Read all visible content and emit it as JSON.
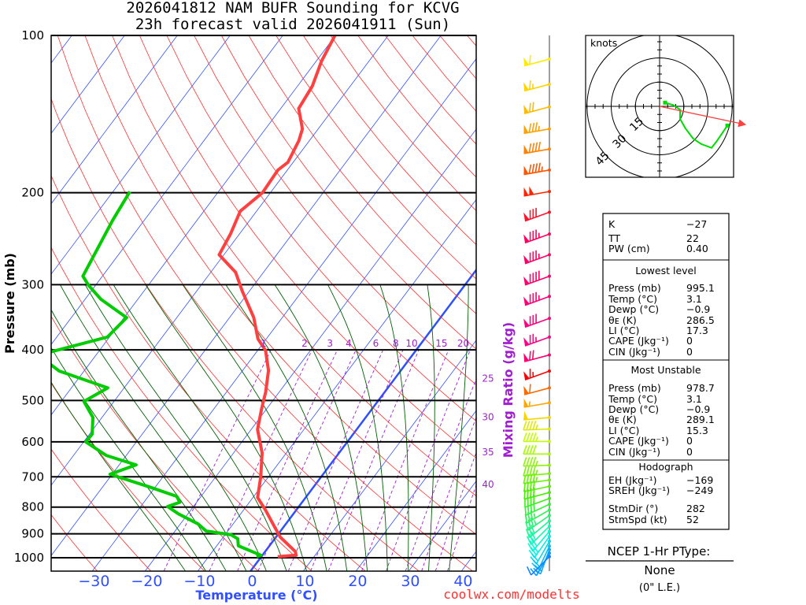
{
  "title": {
    "line1": "2026041812 NAM BUFR Sounding for KCVG",
    "line2": "23h forecast valid 2026041911 (Sun)"
  },
  "credit": "coolwx.com/modelts",
  "chart_data": {
    "type": "skew-t",
    "title": "2026041812 NAM BUFR Sounding for KCVG — 23h forecast valid 2026041911 (Sun)",
    "xlabel": "Temperature (°C)",
    "ylabel": "Pressure (mb)",
    "y2label": "Mixing Ratio (g/kg)",
    "ylim": [
      1060,
      100
    ],
    "pressure_ticks": [
      100,
      200,
      300,
      400,
      500,
      600,
      700,
      800,
      900,
      1000
    ],
    "pressure_tick_labels": [
      "100",
      "200",
      "300",
      "400",
      "500",
      "600",
      "700",
      "800",
      "900",
      "1000"
    ],
    "temperature_ticks": [
      -30,
      -20,
      -10,
      0,
      10,
      20,
      30,
      40
    ],
    "temperature_tick_labels": [
      "−30",
      "−20",
      "−10",
      "0",
      "10",
      "20",
      "30",
      "40"
    ],
    "mixing_ratio_values": [
      1,
      2,
      3,
      4,
      6,
      8,
      10,
      15,
      20,
      25,
      30,
      35,
      40
    ],
    "mixing_ratio_labels": [
      "1",
      "2",
      "3",
      "4",
      "6",
      "8",
      "10",
      "15",
      "20",
      "25",
      "30",
      "35",
      "40"
    ],
    "temperature": {
      "name": "Temperature",
      "color": "#ff4040",
      "points": [
        [
          100,
          -60.1
        ],
        [
          112,
          -59.0
        ],
        [
          125,
          -57.2
        ],
        [
          138,
          -56.6
        ],
        [
          151,
          -53.0
        ],
        [
          159,
          -52.0
        ],
        [
          175,
          -51.0
        ],
        [
          181,
          -51.8
        ],
        [
          200,
          -51.5
        ],
        [
          217,
          -53.1
        ],
        [
          240,
          -51.7
        ],
        [
          263,
          -50.9
        ],
        [
          284,
          -45.3
        ],
        [
          309,
          -41.3
        ],
        [
          347,
          -35.4
        ],
        [
          381,
          -31.6
        ],
        [
          401,
          -28.5
        ],
        [
          438,
          -25.1
        ],
        [
          481,
          -22.6
        ],
        [
          520,
          -20.9
        ],
        [
          568,
          -18.8
        ],
        [
          630,
          -14.6
        ],
        [
          699,
          -11.5
        ],
        [
          767,
          -9.1
        ],
        [
          811,
          -5.8
        ],
        [
          867,
          -2.1
        ],
        [
          913,
          0.8
        ],
        [
          973,
          5.7
        ],
        [
          989,
          6.4
        ],
        [
          995.1,
          3.1
        ]
      ]
    },
    "dewpoint": {
      "name": "Dewpoint",
      "color": "#00cc00",
      "points": [
        [
          199,
          -76.8
        ],
        [
          226,
          -76.0
        ],
        [
          289,
          -73.7
        ],
        [
          301,
          -71.3
        ],
        [
          320,
          -67.0
        ],
        [
          347,
          -59.5
        ],
        [
          378,
          -60.4
        ],
        [
          404,
          -69.2
        ],
        [
          415,
          -71.8
        ],
        [
          426,
          -67.4
        ],
        [
          439,
          -64.7
        ],
        [
          473,
          -53.1
        ],
        [
          502,
          -55.7
        ],
        [
          539,
          -51.7
        ],
        [
          580,
          -49.5
        ],
        [
          600,
          -49.6
        ],
        [
          637,
          -43.8
        ],
        [
          664,
          -36.8
        ],
        [
          692,
          -40.4
        ],
        [
          732,
          -31.1
        ],
        [
          763,
          -24.6
        ],
        [
          783,
          -23.2
        ],
        [
          798,
          -24.9
        ],
        [
          824,
          -21.8
        ],
        [
          862,
          -16.6
        ],
        [
          889,
          -14.1
        ],
        [
          904,
          -8.8
        ],
        [
          920,
          -7.0
        ],
        [
          949,
          -5.9
        ],
        [
          989,
          -0.3
        ],
        [
          995.1,
          -0.9
        ]
      ]
    },
    "wind_barbs": [
      [
        111,
        255,
        60
      ],
      [
        124,
        255,
        65
      ],
      [
        137,
        255,
        70
      ],
      [
        151,
        260,
        85
      ],
      [
        165,
        260,
        90
      ],
      [
        181,
        260,
        95
      ],
      [
        199,
        260,
        100
      ],
      [
        218,
        250,
        80
      ],
      [
        240,
        250,
        85
      ],
      [
        263,
        250,
        85
      ],
      [
        289,
        250,
        90
      ],
      [
        316,
        250,
        85
      ],
      [
        348,
        250,
        80
      ],
      [
        378,
        250,
        75
      ],
      [
        409,
        255,
        70
      ],
      [
        439,
        250,
        65
      ],
      [
        473,
        255,
        60
      ],
      [
        505,
        260,
        55
      ],
      [
        539,
        265,
        50
      ],
      [
        567,
        268,
        45
      ],
      [
        599,
        270,
        45
      ],
      [
        633,
        270,
        40
      ],
      [
        665,
        268,
        45
      ],
      [
        690,
        265,
        45
      ],
      [
        710,
        262,
        45
      ],
      [
        730,
        258,
        42
      ],
      [
        750,
        255,
        40
      ],
      [
        770,
        250,
        40
      ],
      [
        790,
        245,
        38
      ],
      [
        810,
        240,
        35
      ],
      [
        830,
        235,
        35
      ],
      [
        850,
        230,
        32
      ],
      [
        870,
        225,
        30
      ],
      [
        890,
        220,
        28
      ],
      [
        910,
        215,
        25
      ],
      [
        930,
        210,
        22
      ],
      [
        950,
        205,
        20
      ],
      [
        965,
        200,
        18
      ],
      [
        980,
        210,
        15
      ],
      [
        995,
        225,
        12
      ]
    ],
    "wind_units": "knots",
    "barb_palette": [
      [
        100,
        "#ffff00"
      ],
      [
        160,
        "#ff9000"
      ],
      [
        200,
        "#ff2000"
      ],
      [
        240,
        "#ff0060"
      ],
      [
        400,
        "#ff0090"
      ],
      [
        440,
        "#ff0000"
      ],
      [
        480,
        "#ff8000"
      ],
      [
        530,
        "#ffd000"
      ],
      [
        600,
        "#c0ff00"
      ],
      [
        760,
        "#40ee00"
      ],
      [
        900,
        "#00ffe0"
      ],
      [
        1000,
        "#1080ff"
      ]
    ],
    "hodograph": {
      "units_label": "knots",
      "ring_values": [
        15,
        30,
        45
      ],
      "ring_labels": [
        "15",
        "30",
        "45"
      ],
      "points_uv": [
        [
          3.4,
          2.3
        ],
        [
          8.6,
          0.8
        ],
        [
          12.7,
          -2.1
        ],
        [
          12.7,
          -7.8
        ],
        [
          15.9,
          -13.5
        ],
        [
          20.8,
          -20.0
        ],
        [
          25.7,
          -23.3
        ],
        [
          32.2,
          -25.7
        ],
        [
          35.4,
          -21.6
        ],
        [
          42.0,
          -11.9
        ]
      ],
      "storm_motion": {
        "dir": 282,
        "spd": 52
      }
    }
  },
  "indices": {
    "top": [
      {
        "label": "K",
        "value": "−27"
      },
      {
        "label": "TT",
        "value": "22"
      },
      {
        "label": "PW (cm)",
        "value": "0.40"
      }
    ],
    "lowest_title": "Lowest level",
    "lowest": [
      {
        "label": "Press (mb)",
        "value": "995.1"
      },
      {
        "label": "Temp (°C)",
        "value": "3.1"
      },
      {
        "label": "Dewp (°C)",
        "value": "−0.9"
      },
      {
        "label": "θᴇ (K)",
        "value": "286.5"
      },
      {
        "label": "LI (°C)",
        "value": "17.3"
      },
      {
        "label": "CAPE (Jkg⁻¹)",
        "value": "0"
      },
      {
        "label": "CIN (Jkg⁻¹)",
        "value": "0"
      }
    ],
    "unstable_title": "Most Unstable",
    "unstable": [
      {
        "label": "Press (mb)",
        "value": "978.7"
      },
      {
        "label": "Temp (°C)",
        "value": "3.1"
      },
      {
        "label": "Dewp (°C)",
        "value": "−0.9"
      },
      {
        "label": "θᴇ (K)",
        "value": "289.1"
      },
      {
        "label": "LI (°C)",
        "value": "15.3"
      },
      {
        "label": "CAPE (Jkg⁻¹)",
        "value": "0"
      },
      {
        "label": "CIN (Jkg⁻¹)",
        "value": "0"
      }
    ],
    "hodo_title": "Hodograph",
    "hodo": [
      {
        "label": "EH (Jkg⁻¹)",
        "value": "−169"
      },
      {
        "label": "SREH (Jkg⁻¹)",
        "value": "−249"
      },
      {
        "label": "StmDir (°)",
        "value": "282"
      },
      {
        "label": "StmSpd (kt)",
        "value": "52"
      }
    ]
  },
  "ptype": {
    "heading": "NCEP 1-Hr PType:",
    "value": "None",
    "amount": "(0\" L.E.)"
  }
}
